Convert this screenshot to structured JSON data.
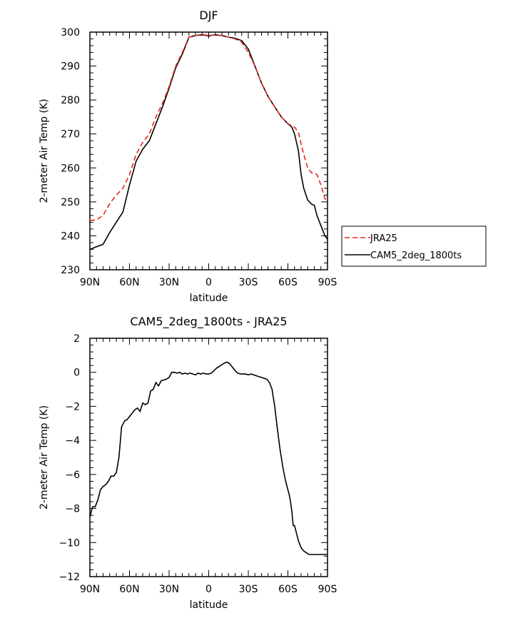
{
  "chart_data": [
    {
      "type": "line",
      "title": "DJF",
      "xlabel": "latitude",
      "ylabel": "2-meter Air Temp (K)",
      "xlim": [
        90,
        -90
      ],
      "ylim": [
        230,
        300
      ],
      "x_ticks": [
        {
          "value": 90,
          "label": "90N"
        },
        {
          "value": 60,
          "label": "60N"
        },
        {
          "value": 30,
          "label": "30N"
        },
        {
          "value": 0,
          "label": "0"
        },
        {
          "value": -30,
          "label": "30S"
        },
        {
          "value": -60,
          "label": "60S"
        },
        {
          "value": -90,
          "label": "90S"
        }
      ],
      "y_ticks": [
        230,
        240,
        250,
        260,
        270,
        280,
        290,
        300
      ],
      "legend": {
        "placement": "right"
      },
      "series": [
        {
          "name": "JRA25",
          "color": "#e8261f",
          "dash": true,
          "x": [
            90,
            85,
            80,
            75,
            70,
            65,
            60,
            55,
            50,
            45,
            40,
            35,
            30,
            25,
            20,
            15,
            10,
            5,
            0,
            -5,
            -10,
            -15,
            -20,
            -25,
            -30,
            -35,
            -40,
            -45,
            -50,
            -55,
            -60,
            -65,
            -68,
            -70,
            -72,
            -75,
            -78,
            -80,
            -82,
            -85,
            -88,
            -90
          ],
          "values": [
            244.5,
            244.7,
            246,
            249.5,
            252,
            254,
            258,
            264,
            267.5,
            270,
            275,
            279,
            284,
            290,
            294,
            298.5,
            299,
            299.3,
            299,
            299.2,
            299,
            298.5,
            298,
            297,
            294,
            290,
            285,
            281,
            278,
            275,
            273,
            272,
            270.5,
            267,
            264,
            260,
            258.5,
            258.5,
            258,
            255,
            251,
            250
          ]
        },
        {
          "name": "CAM5_2deg_1800ts",
          "color": "#000000",
          "dash": false,
          "x": [
            90,
            85,
            80,
            75,
            70,
            65,
            60,
            55,
            50,
            45,
            40,
            35,
            30,
            25,
            20,
            15,
            10,
            5,
            0,
            -5,
            -10,
            -15,
            -20,
            -25,
            -30,
            -35,
            -40,
            -45,
            -50,
            -55,
            -60,
            -63,
            -65,
            -68,
            -70,
            -72,
            -75,
            -78,
            -80,
            -82,
            -85,
            -88,
            -90
          ],
          "values": [
            236,
            236.8,
            237.5,
            241,
            244,
            247,
            255,
            262,
            265.5,
            268,
            273,
            278,
            283.5,
            289.5,
            293.5,
            298.5,
            299,
            299.2,
            298.9,
            299.2,
            299,
            298.5,
            298.2,
            297.5,
            295,
            290,
            285,
            281,
            278,
            275,
            273,
            272,
            270,
            265,
            258,
            254,
            250.5,
            249.3,
            249,
            246,
            243,
            240,
            239
          ]
        }
      ]
    },
    {
      "type": "line",
      "title": "CAM5_2deg_1800ts - JRA25",
      "xlabel": "latitude",
      "ylabel": "2-meter Air Temp (K)",
      "xlim": [
        90,
        -90
      ],
      "ylim": [
        -12,
        2
      ],
      "x_ticks": [
        {
          "value": 90,
          "label": "90N"
        },
        {
          "value": 60,
          "label": "60N"
        },
        {
          "value": 30,
          "label": "30N"
        },
        {
          "value": 0,
          "label": "0"
        },
        {
          "value": -30,
          "label": "30S"
        },
        {
          "value": -60,
          "label": "60S"
        },
        {
          "value": -90,
          "label": "90S"
        }
      ],
      "y_ticks": [
        -12,
        -10,
        -8,
        -6,
        -4,
        -2,
        0,
        2
      ],
      "series": [
        {
          "color": "#000000",
          "dash": false,
          "x": [
            90,
            88,
            86,
            84,
            82,
            80,
            78,
            76,
            74,
            72,
            70,
            68,
            66,
            64,
            63,
            62,
            60,
            58,
            56,
            54,
            52,
            50,
            48,
            46,
            44,
            42,
            40,
            38,
            36,
            34,
            32,
            30,
            28,
            26,
            24,
            22,
            20,
            18,
            16,
            14,
            12,
            10,
            8,
            6,
            4,
            2,
            0,
            -2,
            -4,
            -6,
            -8,
            -10,
            -12,
            -14,
            -16,
            -18,
            -20,
            -22,
            -24,
            -26,
            -28,
            -30,
            -32,
            -34,
            -36,
            -38,
            -40,
            -42,
            -44,
            -46,
            -48,
            -50,
            -52,
            -54,
            -56,
            -58,
            -60,
            -61,
            -62,
            -63,
            -64,
            -65,
            -66,
            -67,
            -68,
            -69,
            -70,
            -72,
            -74,
            -76,
            -78,
            -80,
            -82,
            -84,
            -86,
            -88,
            -90
          ],
          "values": [
            -8.5,
            -7.9,
            -7.9,
            -7.5,
            -6.9,
            -6.7,
            -6.6,
            -6.4,
            -6.1,
            -6.1,
            -5.9,
            -5.0,
            -3.2,
            -2.9,
            -2.8,
            -2.8,
            -2.6,
            -2.4,
            -2.2,
            -2.1,
            -2.3,
            -1.8,
            -1.9,
            -1.8,
            -1.1,
            -1.0,
            -0.6,
            -0.8,
            -0.5,
            -0.45,
            -0.4,
            -0.3,
            0.0,
            0.0,
            -0.05,
            0.0,
            -0.1,
            -0.05,
            -0.1,
            -0.05,
            -0.1,
            -0.15,
            -0.05,
            -0.1,
            -0.05,
            -0.1,
            -0.1,
            -0.05,
            0.1,
            0.25,
            0.35,
            0.45,
            0.55,
            0.6,
            0.5,
            0.3,
            0.1,
            -0.05,
            -0.1,
            -0.1,
            -0.1,
            -0.15,
            -0.1,
            -0.15,
            -0.2,
            -0.25,
            -0.3,
            -0.35,
            -0.4,
            -0.6,
            -1.0,
            -2.0,
            -3.3,
            -4.5,
            -5.5,
            -6.3,
            -6.9,
            -7.2,
            -7.6,
            -8.2,
            -9.0,
            -9.0,
            -9.3,
            -9.6,
            -9.9,
            -10.1,
            -10.3,
            -10.5,
            -10.6,
            -10.7,
            -10.7,
            -10.7,
            -10.7,
            -10.7,
            -10.7,
            -10.7,
            -10.7
          ]
        }
      ]
    }
  ]
}
